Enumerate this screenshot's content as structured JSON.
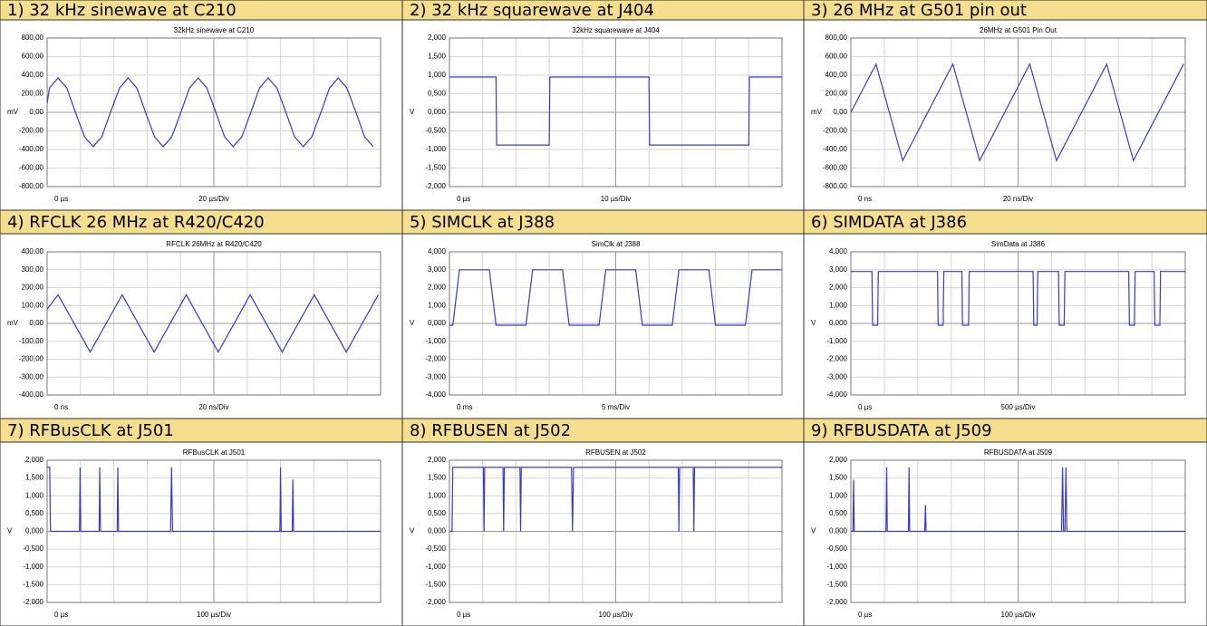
{
  "chart_data": [
    {
      "type": "line",
      "panel_title": "1) 32 kHz sinewave at C210",
      "title": "32kHz sinewave at C210",
      "ylabel": "mV",
      "x_start_label": "0 µs",
      "x_scale_label": "20 µs/Div",
      "color": "#3a3ad0",
      "grid": true,
      "xlim": [
        0,
        10
      ],
      "xticks": [
        0,
        1,
        2,
        3,
        4,
        5,
        6,
        7,
        8,
        9,
        10
      ],
      "ylim": [
        -800,
        800
      ],
      "yticks": [
        {
          "value": 800,
          "label": "800,00"
        },
        {
          "value": 600,
          "label": "600,00"
        },
        {
          "value": 400,
          "label": "400,00"
        },
        {
          "value": 200,
          "label": "200,00"
        },
        {
          "value": 0,
          "label": "0,00"
        },
        {
          "value": -200,
          "label": "-200,00"
        },
        {
          "value": -400,
          "label": "-400,00"
        },
        {
          "value": -600,
          "label": "-600,00"
        },
        {
          "value": -800,
          "label": "-800,00"
        }
      ],
      "x": [
        0,
        0.07,
        0.33,
        0.59,
        0.85,
        1.12,
        1.38,
        1.64,
        1.9,
        2.17,
        2.43,
        2.69,
        2.95,
        3.22,
        3.48,
        3.74,
        4.01,
        4.27,
        4.53,
        4.79,
        5.06,
        5.32,
        5.58,
        5.84,
        6.11,
        6.37,
        6.63,
        6.89,
        7.16,
        7.42,
        7.68,
        7.94,
        8.21,
        8.47,
        8.73,
        8.99,
        9.26,
        9.52,
        9.78
      ],
      "values": [
        100,
        262,
        370,
        262,
        0,
        -262,
        -370,
        -262,
        0,
        262,
        370,
        262,
        0,
        -262,
        -370,
        -262,
        0,
        262,
        370,
        262,
        0,
        -262,
        -370,
        -262,
        0,
        262,
        370,
        262,
        0,
        -262,
        -370,
        -262,
        0,
        262,
        370,
        262,
        0,
        -262,
        -370
      ]
    },
    {
      "type": "line",
      "panel_title": "2) 32 kHz squarewave at J404",
      "title": "32kHz squarewave at J404",
      "ylabel": "V",
      "x_start_label": "0 µs",
      "x_scale_label": "10 µs/Div",
      "color": "#3a3ad0",
      "grid": true,
      "xlim": [
        0,
        10
      ],
      "xticks": [
        0,
        1,
        2,
        3,
        4,
        5,
        6,
        7,
        8,
        9,
        10
      ],
      "ylim": [
        -2,
        2
      ],
      "yticks": [
        {
          "value": 2,
          "label": "2,000"
        },
        {
          "value": 1.5,
          "label": "1,500"
        },
        {
          "value": 1,
          "label": "1,000"
        },
        {
          "value": 0.5,
          "label": "0,500"
        },
        {
          "value": 0,
          "label": "0,000"
        },
        {
          "value": -0.5,
          "label": "-0,500"
        },
        {
          "value": -1,
          "label": "-1,000"
        },
        {
          "value": -1.5,
          "label": "-1,500"
        },
        {
          "value": -2,
          "label": "-2,000"
        }
      ],
      "x": [
        0,
        1.4,
        1.42,
        3.0,
        3.02,
        6.0,
        6.02,
        9.0,
        9.02,
        10
      ],
      "values": [
        0.95,
        0.95,
        -0.88,
        -0.88,
        0.95,
        0.95,
        -0.88,
        -0.88,
        0.95,
        0.95
      ]
    },
    {
      "type": "line",
      "panel_title": "3) 26 MHz at G501 pin out",
      "title": "26MHz at G501 Pin Out",
      "ylabel": "mV",
      "x_start_label": "0 ns",
      "x_scale_label": "20 ns/Div",
      "color": "#3a3ad0",
      "grid": true,
      "xlim": [
        0,
        10
      ],
      "xticks": [
        0,
        1,
        2,
        3,
        4,
        5,
        6,
        7,
        8,
        9,
        10
      ],
      "ylim": [
        -800,
        800
      ],
      "yticks": [
        {
          "value": 800,
          "label": "800,00"
        },
        {
          "value": 600,
          "label": "600,00"
        },
        {
          "value": 400,
          "label": "400,00"
        },
        {
          "value": 200,
          "label": "200,00"
        },
        {
          "value": 0,
          "label": "0,00"
        },
        {
          "value": -200,
          "label": "-200,00"
        },
        {
          "value": -400,
          "label": "-400,00"
        },
        {
          "value": -600,
          "label": "-600,00"
        },
        {
          "value": -800,
          "label": "-800,00"
        }
      ],
      "x": [
        0,
        0.75,
        1.55,
        3.05,
        3.85,
        5.35,
        6.15,
        7.65,
        8.45,
        9.95
      ],
      "values": [
        0,
        520,
        -520,
        520,
        -520,
        520,
        -520,
        520,
        -520,
        520
      ]
    },
    {
      "type": "line",
      "panel_title": "4) RFCLK 26 MHz at R420/C420",
      "title": "RFCLK 26MHz at R420/C420",
      "ylabel": "mV",
      "x_start_label": "0 ns",
      "x_scale_label": "20 ns/Div",
      "color": "#3a3ad0",
      "grid": true,
      "xlim": [
        0,
        10
      ],
      "xticks": [
        0,
        1,
        2,
        3,
        4,
        5,
        6,
        7,
        8,
        9,
        10
      ],
      "ylim": [
        -400,
        400
      ],
      "yticks": [
        {
          "value": 400,
          "label": "400,00"
        },
        {
          "value": 300,
          "label": "300,00"
        },
        {
          "value": 200,
          "label": "200,00"
        },
        {
          "value": 100,
          "label": "100,00"
        },
        {
          "value": 0,
          "label": "0,00"
        },
        {
          "value": -100,
          "label": "-100,00"
        },
        {
          "value": -200,
          "label": "-200,00"
        },
        {
          "value": -300,
          "label": "-300,00"
        },
        {
          "value": -400,
          "label": "-400,00"
        }
      ],
      "x": [
        0,
        0.33,
        1.29,
        2.25,
        3.21,
        4.17,
        5.13,
        6.09,
        7.05,
        8.01,
        8.97,
        9.93
      ],
      "values": [
        80,
        160,
        -160,
        160,
        -160,
        160,
        -160,
        160,
        -160,
        160,
        -160,
        160
      ]
    },
    {
      "type": "line",
      "panel_title": "5) SIMCLK at J388",
      "title": "SimClk at J388",
      "ylabel": "V",
      "x_start_label": "0 ms",
      "x_scale_label": "5 ms/Div",
      "color": "#3a3ad0",
      "grid": true,
      "xlim": [
        0,
        10
      ],
      "xticks": [
        0,
        1,
        2,
        3,
        4,
        5,
        6,
        7,
        8,
        9,
        10
      ],
      "ylim": [
        -4,
        4
      ],
      "yticks": [
        {
          "value": 4,
          "label": "4,000"
        },
        {
          "value": 3,
          "label": "3,000"
        },
        {
          "value": 2,
          "label": "2,000"
        },
        {
          "value": 1,
          "label": "1,000"
        },
        {
          "value": 0,
          "label": "0,000"
        },
        {
          "value": -1,
          "label": "-1,000"
        },
        {
          "value": -2,
          "label": "-2,000"
        },
        {
          "value": -3,
          "label": "-3,000"
        },
        {
          "value": -4,
          "label": "-4,000"
        }
      ],
      "x": [
        0,
        0.1,
        0.3,
        1.2,
        1.4,
        2.3,
        2.5,
        3.4,
        3.6,
        4.5,
        4.7,
        5.6,
        5.8,
        6.7,
        6.9,
        7.8,
        8.0,
        8.9,
        9.1,
        10
      ],
      "values": [
        -0.1,
        -0.1,
        3,
        3,
        -0.1,
        -0.1,
        3,
        3,
        -0.1,
        -0.1,
        3,
        3,
        -0.1,
        -0.1,
        3,
        3,
        -0.1,
        -0.1,
        3,
        3
      ]
    },
    {
      "type": "line",
      "panel_title": "6) SIMDATA at J386",
      "title": "SimData at J386",
      "ylabel": "V",
      "x_start_label": "0 µs",
      "x_scale_label": "500 µs/Div",
      "color": "#3a3ad0",
      "grid": true,
      "xlim": [
        0,
        10
      ],
      "xticks": [
        0,
        1,
        2,
        3,
        4,
        5,
        6,
        7,
        8,
        9,
        10
      ],
      "ylim": [
        -4,
        4
      ],
      "yticks": [
        {
          "value": 4,
          "label": "4,000"
        },
        {
          "value": 3,
          "label": "3,000"
        },
        {
          "value": 2,
          "label": "2,000"
        },
        {
          "value": 1,
          "label": "1,000"
        },
        {
          "value": 0,
          "label": "0,000"
        },
        {
          "value": -1,
          "label": "-1,000"
        },
        {
          "value": -2,
          "label": "-2,000"
        },
        {
          "value": -3,
          "label": "-3,000"
        },
        {
          "value": -4,
          "label": "-4,000"
        }
      ],
      "x": [
        0,
        0.63,
        0.65,
        0.8,
        0.82,
        2.59,
        2.61,
        2.76,
        2.78,
        3.32,
        3.34,
        3.52,
        3.54,
        5.45,
        5.47,
        5.57,
        5.59,
        6.21,
        6.23,
        6.38,
        6.4,
        8.31,
        8.33,
        8.48,
        8.5,
        9.07,
        9.09,
        9.24,
        9.26,
        10
      ],
      "values": [
        2.9,
        2.9,
        -0.1,
        -0.1,
        2.9,
        2.9,
        -0.1,
        -0.1,
        2.9,
        2.9,
        -0.1,
        -0.1,
        2.9,
        2.9,
        -0.1,
        -0.1,
        2.9,
        2.9,
        -0.1,
        -0.1,
        2.9,
        2.9,
        -0.1,
        -0.1,
        2.9,
        2.9,
        -0.1,
        -0.1,
        2.9,
        2.9
      ]
    },
    {
      "type": "line",
      "panel_title": "7) RFBusCLK at J501",
      "title": "RFBusCLK at J501",
      "ylabel": "V",
      "x_start_label": "0 µs",
      "x_scale_label": "100 µs/Div",
      "color": "#3a3ad0",
      "grid": true,
      "xlim": [
        0,
        10
      ],
      "xticks": [
        0,
        1,
        2,
        3,
        4,
        5,
        6,
        7,
        8,
        9,
        10
      ],
      "ylim": [
        -2,
        2
      ],
      "yticks": [
        {
          "value": 2,
          "label": "2,000"
        },
        {
          "value": 1.5,
          "label": "1,500"
        },
        {
          "value": 1,
          "label": "1,000"
        },
        {
          "value": 0.5,
          "label": "0,500"
        },
        {
          "value": 0,
          "label": "0,000"
        },
        {
          "value": -0.5,
          "label": "-0,500"
        },
        {
          "value": -1,
          "label": "-1,000"
        },
        {
          "value": -1.5,
          "label": "-1,500"
        },
        {
          "value": -2,
          "label": "-2,000"
        }
      ],
      "x": [
        0,
        0.08,
        0.1,
        0.97,
        0.99,
        1.01,
        1.56,
        1.58,
        1.6,
        2.1,
        2.12,
        2.14,
        3.7,
        3.73,
        3.76,
        6.98,
        7.0,
        7.02,
        7.35,
        7.37,
        7.39,
        10
      ],
      "values": [
        1.8,
        1.8,
        0,
        0,
        1.8,
        0,
        0,
        1.8,
        0,
        0,
        1.8,
        0,
        0,
        1.8,
        0,
        0,
        1.8,
        0,
        0,
        1.45,
        0,
        0
      ]
    },
    {
      "type": "line",
      "panel_title": "8) RFBUSEN at J502",
      "title": "RFBUSEN at J502",
      "ylabel": "V",
      "x_start_label": "0 µs",
      "x_scale_label": "100 µs/Div",
      "color": "#3a3ad0",
      "grid": true,
      "xlim": [
        0,
        10
      ],
      "xticks": [
        0,
        1,
        2,
        3,
        4,
        5,
        6,
        7,
        8,
        9,
        10
      ],
      "ylim": [
        -2,
        2
      ],
      "yticks": [
        {
          "value": 2,
          "label": "2,000"
        },
        {
          "value": 1.5,
          "label": "1,500"
        },
        {
          "value": 1,
          "label": "1,000"
        },
        {
          "value": 0.5,
          "label": "0,500"
        },
        {
          "value": 0,
          "label": "0,000"
        },
        {
          "value": -0.5,
          "label": "-0,500"
        },
        {
          "value": -1,
          "label": "-1,000"
        },
        {
          "value": -1.5,
          "label": "-1,500"
        },
        {
          "value": -2,
          "label": "-2,000"
        }
      ],
      "x": [
        0,
        0.08,
        0.1,
        1.02,
        1.04,
        1.06,
        1.61,
        1.63,
        1.65,
        2.12,
        2.14,
        2.16,
        3.67,
        3.7,
        3.73,
        6.88,
        6.9,
        6.92,
        7.33,
        7.35,
        7.37,
        10
      ],
      "values": [
        0,
        0,
        1.8,
        1.8,
        0,
        1.8,
        1.8,
        0,
        1.8,
        1.8,
        0,
        1.8,
        1.8,
        0,
        1.8,
        1.8,
        0,
        1.8,
        1.8,
        0,
        1.8,
        1.8
      ]
    },
    {
      "type": "line",
      "panel_title": "9) RFBUSDATA at J509",
      "title": "RFBUSDATA at J509",
      "ylabel": "V",
      "x_start_label": "0 µs",
      "x_scale_label": "100 µs/Div",
      "color": "#3a3ad0",
      "grid": true,
      "xlim": [
        0,
        10
      ],
      "xticks": [
        0,
        1,
        2,
        3,
        4,
        5,
        6,
        7,
        8,
        9,
        10
      ],
      "ylim": [
        -2,
        2
      ],
      "yticks": [
        {
          "value": 2,
          "label": "2,000"
        },
        {
          "value": 1.5,
          "label": "1,500"
        },
        {
          "value": 1,
          "label": "1,000"
        },
        {
          "value": 0.5,
          "label": "0,500"
        },
        {
          "value": 0,
          "label": "0,000"
        },
        {
          "value": -0.5,
          "label": "-0,500"
        },
        {
          "value": -1,
          "label": "-1,000"
        },
        {
          "value": -1.5,
          "label": "-1,500"
        },
        {
          "value": -2,
          "label": "-2,000"
        }
      ],
      "x": [
        0,
        0.06,
        0.08,
        0.1,
        1.05,
        1.07,
        1.09,
        1.72,
        1.74,
        1.76,
        2.21,
        2.23,
        2.25,
        6.3,
        6.33,
        6.36,
        6.4,
        6.43,
        6.46,
        10
      ],
      "values": [
        0,
        0,
        1.45,
        0,
        0,
        1.8,
        0,
        0,
        1.8,
        0,
        0,
        0.75,
        0,
        0,
        1.8,
        0,
        0,
        1.8,
        0,
        0
      ]
    }
  ]
}
